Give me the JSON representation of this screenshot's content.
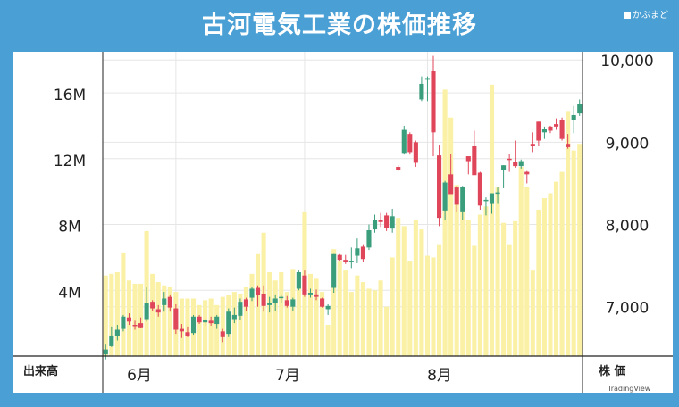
{
  "header": {
    "title": "古河電気工業の株価推移",
    "brand": "かぶまど"
  },
  "footer": {
    "left_label": "出来高",
    "right_label": "株 価",
    "watermark": "TradingView"
  },
  "colors": {
    "background": "#4a9fd4",
    "up": "#3a9e7c",
    "down": "#e0465a",
    "volume": "#fbf1a6",
    "grid": "#e6e6e6"
  },
  "chart_data": {
    "type": "candlestick",
    "months": [
      "6月",
      "7月",
      "8月"
    ],
    "price_axis": {
      "ticks": [
        7000,
        8000,
        9000,
        10000
      ],
      "tick_labels": [
        "7,000",
        "8,000",
        "9,000",
        "10,000"
      ],
      "ylim": [
        6400,
        10100
      ]
    },
    "volume_axis": {
      "ticks": [
        4,
        8,
        12,
        16
      ],
      "tick_labels": [
        "4M",
        "8M",
        "12M",
        "16M"
      ],
      "ylim": [
        0,
        18.5
      ]
    },
    "volume": [
      4.9,
      5.0,
      5.1,
      6.3,
      4.6,
      4.4,
      4.4,
      7.6,
      5.0,
      4.5,
      4.3,
      4.2,
      3.9,
      3.5,
      3.5,
      3.5,
      3.1,
      3.4,
      3.5,
      3.1,
      3.6,
      3.7,
      3.9,
      3.8,
      4.2,
      5.0,
      6.2,
      7.5,
      5.1,
      4.6,
      5.1,
      3.9,
      5.3,
      5.0,
      8.8,
      5.0,
      4.7,
      3.9,
      1.9,
      6.5,
      5.8,
      5.2,
      3.9,
      4.9,
      4.5,
      4.1,
      4.0,
      4.6,
      3.0,
      6.0,
      8.4,
      7.9,
      5.8,
      8.3,
      7.7,
      6.1,
      6.0,
      6.8,
      16.2,
      14.5,
      10.4,
      8.9,
      8.3,
      6.7,
      8.6,
      9.1,
      16.5,
      10.3,
      8.1,
      6.8,
      8.2,
      11.5,
      10.3,
      5.2,
      8.9,
      9.6,
      9.9,
      10.6,
      11.2,
      14.9,
      12.5,
      12.9
    ],
    "ohlc": [
      [
        6420,
        6360,
        6550,
        6480
      ],
      [
        6520,
        6510,
        6760,
        6650
      ],
      [
        6640,
        6590,
        6780,
        6720
      ],
      [
        6730,
        6700,
        6900,
        6880
      ],
      [
        6870,
        6780,
        6920,
        6820
      ],
      [
        6780,
        6720,
        6830,
        6770
      ],
      [
        6800,
        6740,
        6870,
        6750
      ],
      [
        6850,
        6820,
        7240,
        7050
      ],
      [
        7060,
        6950,
        7080,
        6980
      ],
      [
        6970,
        6880,
        7020,
        6930
      ],
      [
        7020,
        6940,
        7180,
        7100
      ],
      [
        7120,
        6940,
        7150,
        6990
      ],
      [
        6980,
        6670,
        7030,
        6720
      ],
      [
        6730,
        6620,
        6790,
        6700
      ],
      [
        6690,
        6630,
        6760,
        6640
      ],
      [
        6680,
        6660,
        6900,
        6880
      ],
      [
        6880,
        6790,
        6900,
        6810
      ],
      [
        6810,
        6770,
        6860,
        6840
      ],
      [
        6830,
        6770,
        6880,
        6800
      ],
      [
        6790,
        6730,
        6900,
        6880
      ],
      [
        6700,
        6570,
        6730,
        6630
      ],
      [
        6670,
        6630,
        6980,
        6940
      ],
      [
        6850,
        6800,
        6990,
        6900
      ],
      [
        6890,
        6840,
        7100,
        7060
      ],
      [
        7090,
        6950,
        7110,
        7000
      ],
      [
        7110,
        7070,
        7240,
        7220
      ],
      [
        7230,
        7000,
        7260,
        7140
      ],
      [
        7160,
        6940,
        7260,
        7010
      ],
      [
        7020,
        6930,
        7120,
        7040
      ],
      [
        7040,
        6950,
        7150,
        7100
      ],
      [
        7120,
        7040,
        7150,
        7120
      ],
      [
        7080,
        6990,
        7130,
        7010
      ],
      [
        7000,
        6950,
        7110,
        7090
      ],
      [
        7220,
        7200,
        7440,
        7420
      ],
      [
        7380,
        7120,
        7440,
        7150
      ],
      [
        7150,
        7110,
        7220,
        7170
      ],
      [
        7150,
        7080,
        7210,
        7120
      ],
      [
        7100,
        6990,
        7110,
        7000
      ],
      [
        6970,
        6900,
        7030,
        7010
      ],
      [
        7230,
        7170,
        7640,
        7640
      ],
      [
        7630,
        7560,
        7640,
        7570
      ],
      [
        7570,
        7520,
        7630,
        7550
      ],
      [
        7540,
        7470,
        7720,
        7560
      ],
      [
        7620,
        7530,
        7830,
        7710
      ],
      [
        7730,
        7550,
        7760,
        7580
      ],
      [
        7720,
        7690,
        8000,
        7930
      ],
      [
        7940,
        7900,
        8120,
        8050
      ],
      [
        8050,
        7970,
        8140,
        8030
      ],
      [
        8110,
        7920,
        8140,
        7960
      ],
      [
        7950,
        7900,
        8190,
        8100
      ],
      [
        8700,
        8650,
        8720,
        8660
      ],
      [
        8870,
        8850,
        9200,
        9150
      ],
      [
        9100,
        8850,
        9120,
        8880
      ],
      [
        9000,
        8700,
        9020,
        8750
      ],
      [
        9520,
        9500,
        9800,
        9710
      ],
      [
        9760,
        9500,
        9800,
        9780
      ],
      [
        9870,
        8830,
        10050,
        9120
      ],
      [
        8840,
        7980,
        8960,
        8080
      ],
      [
        8170,
        8050,
        8530,
        8510
      ],
      [
        8610,
        8380,
        8860,
        8370
      ],
      [
        8450,
        8150,
        8470,
        8240
      ],
      [
        8160,
        8060,
        8470,
        8460
      ],
      [
        8830,
        8610,
        8830,
        8770
      ],
      [
        8950,
        8620,
        9140,
        8600
      ],
      [
        8630,
        8180,
        8640,
        8230
      ],
      [
        8290,
        8110,
        8330,
        8300
      ],
      [
        8260,
        8130,
        8370,
        8380
      ],
      [
        8380,
        8260,
        8450,
        8390
      ],
      [
        8660,
        8440,
        8720,
        8720
      ],
      [
        8800,
        8640,
        8860,
        8790
      ],
      [
        8760,
        8690,
        9020,
        8710
      ],
      [
        8710,
        8680,
        8790,
        8770
      ],
      [
        8640,
        8500,
        8650,
        8610
      ],
      [
        8980,
        8880,
        9120,
        8950
      ],
      [
        9250,
        8950,
        9250,
        9020
      ],
      [
        9120,
        9040,
        9190,
        9160
      ],
      [
        9190,
        9110,
        9200,
        9140
      ],
      [
        9220,
        9150,
        9290,
        9190
      ],
      [
        9270,
        9020,
        9300,
        9040
      ],
      [
        8980,
        8920,
        9100,
        8940
      ],
      [
        9270,
        9110,
        9440,
        9330
      ],
      [
        9350,
        9320,
        9520,
        9460
      ]
    ]
  }
}
